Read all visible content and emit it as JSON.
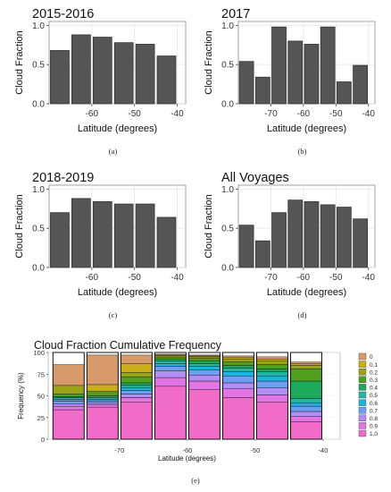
{
  "chart_data": [
    {
      "type": "bar",
      "panel": "(a)",
      "title": "2015-2016",
      "xlabel": "Latitude (degrees)",
      "ylabel": "Cloud Fraction",
      "x": [
        -67.5,
        -62.5,
        -57.5,
        -52.5,
        -47.5,
        -42.5
      ],
      "values": [
        0.68,
        0.88,
        0.85,
        0.78,
        0.76,
        0.61
      ],
      "xlim": [
        -70,
        -38
      ],
      "ylim": [
        0,
        1.05
      ],
      "xticks": [
        -60,
        -50,
        -40
      ],
      "xtick_labels": [
        "-60",
        "-50",
        "-40"
      ],
      "yticks": [
        0,
        0.5,
        1
      ],
      "ytick_labels": [
        "0.0",
        "0.5",
        "1.0"
      ],
      "grid": true
    },
    {
      "type": "bar",
      "panel": "(b)",
      "title": "2017",
      "xlabel": "Latitude (degrees)",
      "ylabel": "Cloud Fraction",
      "x": [
        -77.5,
        -72.5,
        -67.5,
        -62.5,
        -57.5,
        -52.5,
        -47.5,
        -42.5
      ],
      "values": [
        0.54,
        0.34,
        0.98,
        0.8,
        0.76,
        0.98,
        0.28,
        0.49
      ],
      "xlim": [
        -80,
        -38
      ],
      "ylim": [
        0,
        1.05
      ],
      "xticks": [
        -70,
        -60,
        -50,
        -40
      ],
      "xtick_labels": [
        "-70",
        "-60",
        "-50",
        "-40"
      ],
      "yticks": [
        0,
        0.5,
        1
      ],
      "ytick_labels": [
        "0.0",
        "0.5",
        "1.0"
      ],
      "grid": true
    },
    {
      "type": "bar",
      "panel": "(c)",
      "title": "2018-2019",
      "xlabel": "Latitude (degrees)",
      "ylabel": "Cloud Fraction",
      "x": [
        -67.5,
        -62.5,
        -57.5,
        -52.5,
        -47.5,
        -42.5
      ],
      "values": [
        0.7,
        0.88,
        0.84,
        0.81,
        0.81,
        0.64
      ],
      "xlim": [
        -70,
        -38
      ],
      "ylim": [
        0,
        1.05
      ],
      "xticks": [
        -60,
        -50,
        -40
      ],
      "xtick_labels": [
        "-60",
        "-50",
        "-40"
      ],
      "yticks": [
        0,
        0.5,
        1
      ],
      "ytick_labels": [
        "0.0",
        "0.5",
        "1.0"
      ],
      "grid": true
    },
    {
      "type": "bar",
      "panel": "(d)",
      "title": "All Voyages",
      "xlabel": "Latitude (degrees)",
      "ylabel": "Cloud Fraction",
      "x": [
        -77.5,
        -72.5,
        -67.5,
        -62.5,
        -57.5,
        -52.5,
        -47.5,
        -42.5
      ],
      "values": [
        0.54,
        0.34,
        0.7,
        0.86,
        0.84,
        0.8,
        0.77,
        0.62
      ],
      "xlim": [
        -80,
        -38
      ],
      "ylim": [
        0,
        1.05
      ],
      "xticks": [
        -70,
        -60,
        -50,
        -40
      ],
      "xtick_labels": [
        "-70",
        "-60",
        "-50",
        "-40"
      ],
      "yticks": [
        0,
        0.5,
        1
      ],
      "ytick_labels": [
        "0.0",
        "0.5",
        "1.0"
      ],
      "grid": true
    },
    {
      "type": "bar",
      "subtype": "stacked",
      "panel": "(e)",
      "title": "Cloud Fraction Cumulative Frequency",
      "xlabel": "Latitude (degrees)",
      "ylabel": "Frequency (%)",
      "x": [
        -77.5,
        -72.5,
        -67.5,
        -62.5,
        -57.5,
        -52.5,
        -47.5,
        -42.5
      ],
      "xlim": [
        -80.5,
        -37.5
      ],
      "ylim": [
        0,
        100
      ],
      "xticks": [
        -70,
        -60,
        -50,
        -40
      ],
      "xtick_labels": [
        "-70",
        "-60",
        "-50",
        "-40"
      ],
      "yticks": [
        0,
        25,
        50,
        75,
        100
      ],
      "ytick_labels": [
        "0",
        "25",
        "50",
        "75",
        "100"
      ],
      "legend_position": "right",
      "legend_colors": [
        "#d89a6a",
        "#c8ae18",
        "#9aa218",
        "#4fa01e",
        "#1daa5a",
        "#20b8a2",
        "#1ab4e0",
        "#6c9ef4",
        "#b48cf6",
        "#e274e6",
        "#f06cc8"
      ],
      "series": [
        {
          "name": "1.0",
          "values": [
            34,
            37,
            43,
            61,
            57,
            48,
            43,
            20
          ]
        },
        {
          "name": "0.9",
          "values": [
            4,
            3,
            5,
            10,
            10,
            10,
            8,
            6
          ]
        },
        {
          "name": "0.8",
          "values": [
            3,
            2,
            4,
            8,
            7,
            7,
            8,
            6
          ]
        },
        {
          "name": "0.7",
          "values": [
            3,
            2,
            4,
            5,
            6,
            8,
            8,
            6
          ]
        },
        {
          "name": "0.6",
          "values": [
            2,
            2,
            3,
            3,
            4,
            5,
            6,
            4
          ]
        },
        {
          "name": "0.5",
          "values": [
            2,
            2,
            3,
            3,
            3,
            4,
            5,
            5
          ]
        },
        {
          "name": "0.4",
          "values": [
            1,
            2,
            3,
            2,
            3,
            3,
            3,
            20
          ]
        },
        {
          "name": "0.3",
          "values": [
            3,
            5,
            7,
            2,
            3,
            4,
            5,
            14
          ]
        },
        {
          "name": "0.2",
          "values": [
            10,
            0,
            5,
            2,
            2,
            3,
            4,
            4
          ]
        },
        {
          "name": "0.1",
          "values": [
            0,
            8,
            10,
            1,
            1,
            2,
            2,
            2
          ]
        },
        {
          "name": "0",
          "values": [
            24,
            34,
            10,
            1,
            1,
            2,
            3,
            2
          ]
        }
      ]
    }
  ],
  "captions": [
    "(a)",
    "(b)",
    "(c)",
    "(d)",
    "(e)"
  ]
}
